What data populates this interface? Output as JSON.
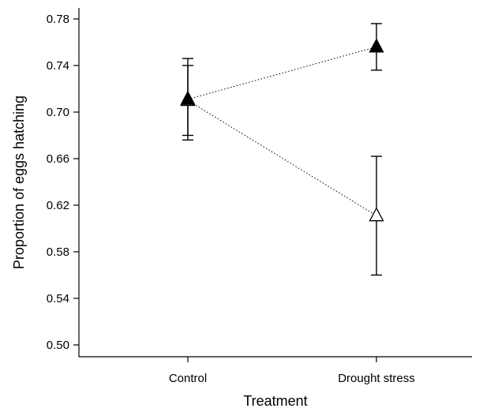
{
  "chart_data": {
    "type": "scatter",
    "xlabel": "Treatment",
    "ylabel": "Proportion of eggs hatching",
    "categories": [
      "Control",
      "Drought stress"
    ],
    "ylim": [
      0.49,
      0.785
    ],
    "yticks": [
      "0.50",
      "0.54",
      "0.58",
      "0.62",
      "0.66",
      "0.70",
      "0.74",
      "0.78"
    ],
    "grid": false,
    "legend": "none",
    "series": [
      {
        "marker": "filled-triangle",
        "values": [
          0.711,
          0.756
        ],
        "err_low": [
          0.676,
          0.736
        ],
        "err_high": [
          0.746,
          0.776
        ]
      },
      {
        "marker": "open-triangle",
        "values": [
          0.71,
          0.611
        ],
        "err_low": [
          0.68,
          0.56
        ],
        "err_high": [
          0.74,
          0.662
        ]
      }
    ]
  }
}
